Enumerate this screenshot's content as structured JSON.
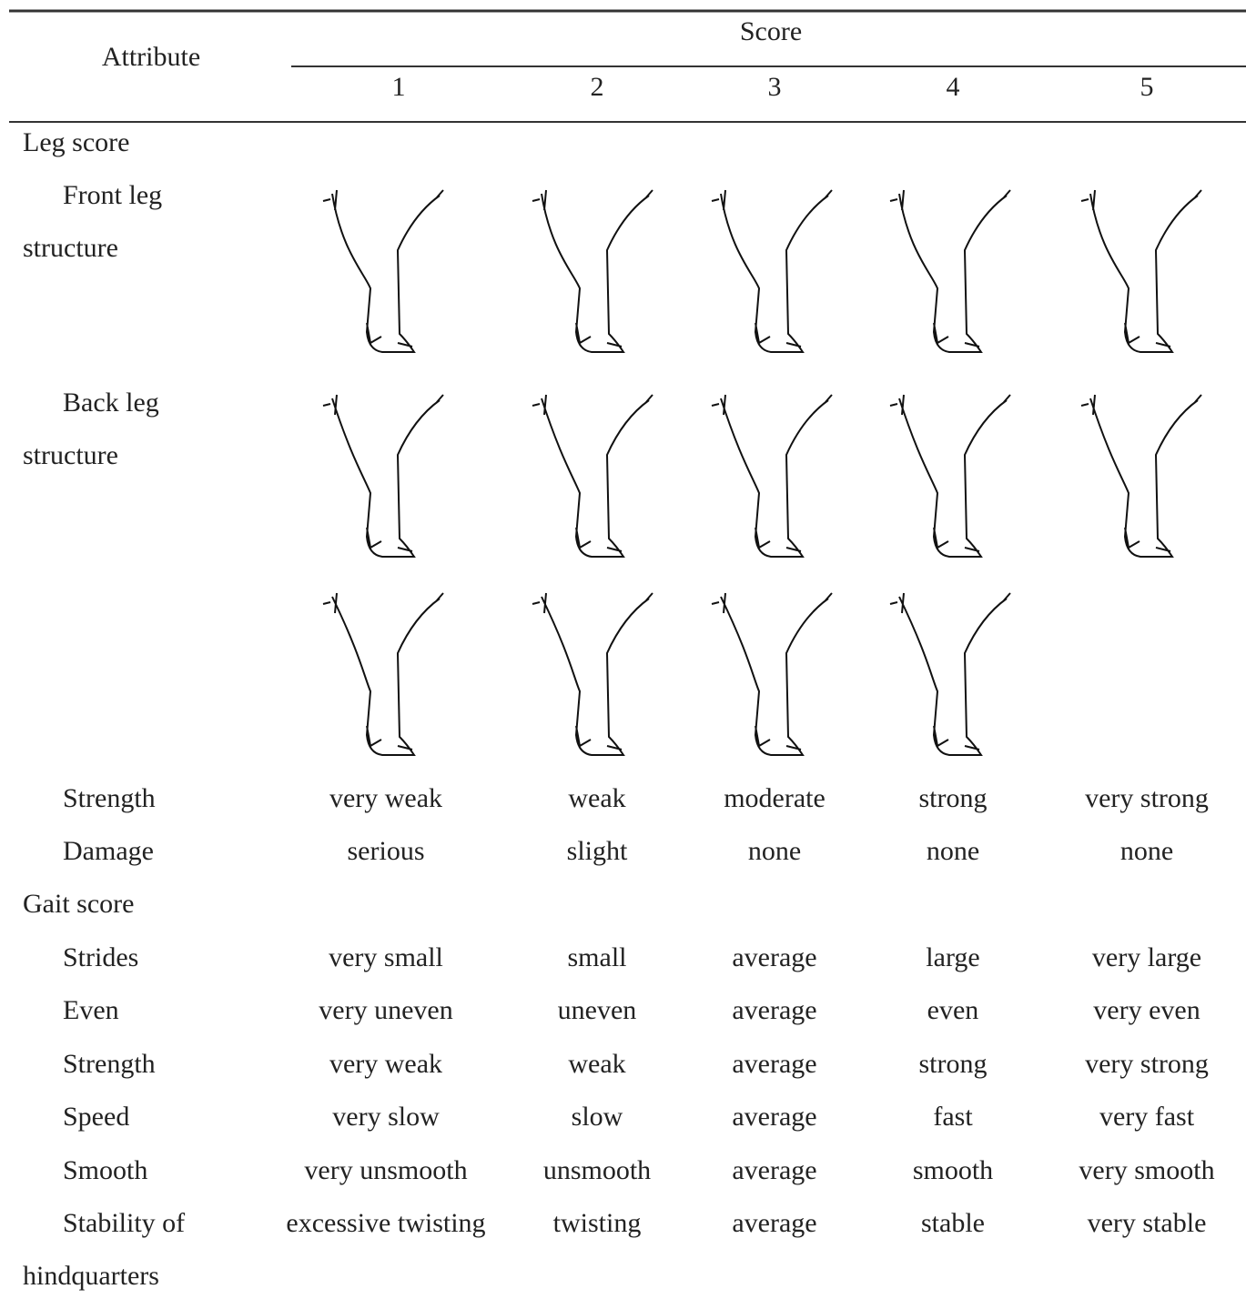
{
  "header": {
    "attribute": "Attribute",
    "score": "Score",
    "score_levels": [
      "1",
      "2",
      "3",
      "4",
      "5"
    ]
  },
  "sections": [
    {
      "title": "Leg score",
      "rows": [
        {
          "label": "Front leg structure"
        },
        {
          "label": "Back leg structure"
        },
        {
          "label": "Strength",
          "cells": [
            "very weak",
            "weak",
            "moderate",
            "strong",
            "very strong"
          ]
        },
        {
          "label": "Damage",
          "cells": [
            "serious",
            "slight",
            "none",
            "none",
            "none"
          ]
        }
      ]
    },
    {
      "title": "Gait score",
      "rows": [
        {
          "label": "Strides",
          "cells": [
            "very small",
            "small",
            "average",
            "large",
            "very large"
          ]
        },
        {
          "label": "Even",
          "cells": [
            "very uneven",
            "uneven",
            "average",
            "even",
            "very even"
          ]
        },
        {
          "label": "Strength",
          "cells": [
            "very weak",
            "weak",
            "average",
            "strong",
            "very strong"
          ]
        },
        {
          "label": "Speed",
          "cells": [
            "very slow",
            "slow",
            "average",
            "fast",
            "very fast"
          ]
        },
        {
          "label": "Smooth",
          "cells": [
            "very unsmooth",
            "unsmooth",
            "average",
            "smooth",
            "very smooth"
          ]
        },
        {
          "label": "Stability of hindquarters",
          "cells": [
            "excessive twisting",
            "twisting",
            "average",
            "stable",
            "very stable"
          ]
        }
      ]
    }
  ]
}
